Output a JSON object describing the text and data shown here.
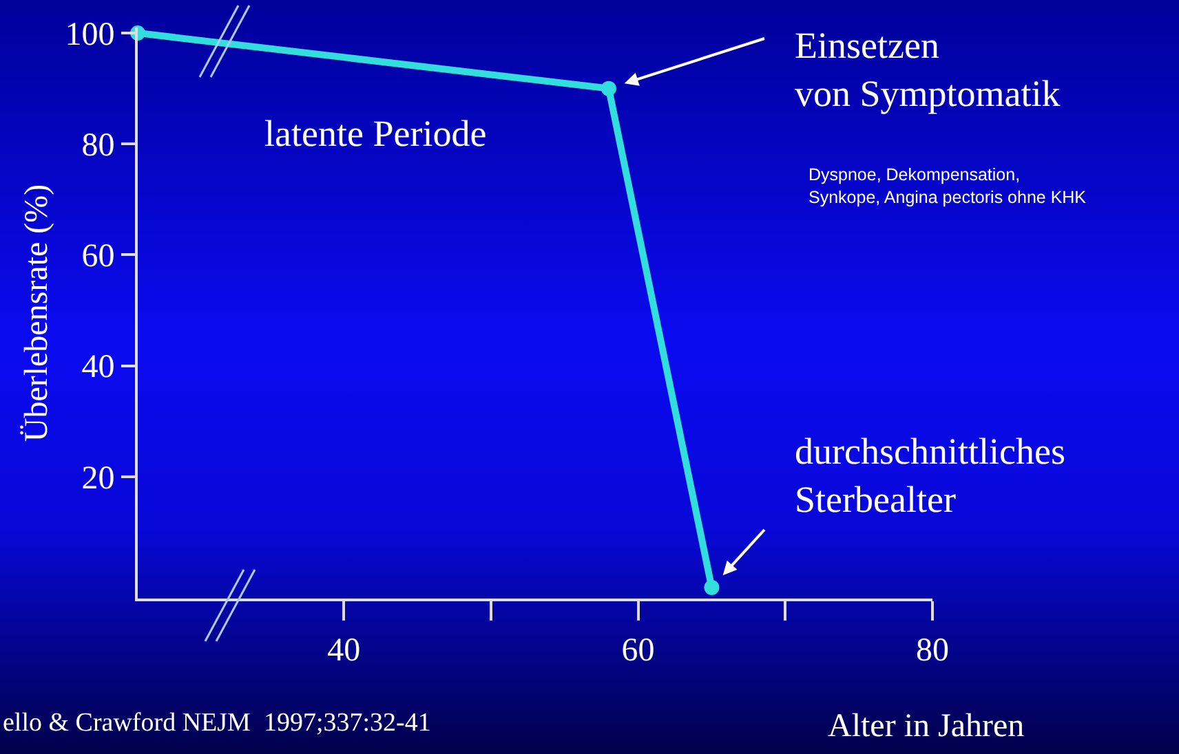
{
  "chart_data": {
    "type": "line",
    "xlabel": "Alter in Jahren",
    "ylabel": "Überlebensrate (%)",
    "x": [
      26,
      58,
      65
    ],
    "series": [
      {
        "color": "#33dddd",
        "values": [
          100,
          90,
          0
        ]
      }
    ],
    "xlim": [
      26,
      80
    ],
    "xticks": [
      40,
      {
        "value": 50,
        "label": null
      },
      60,
      {
        "value": 70,
        "label": null
      },
      80
    ],
    "ylim": [
      -2,
      101
    ],
    "yticks": [
      20,
      40,
      60,
      80,
      100
    ],
    "grid": false,
    "legend": false,
    "marker": "circle",
    "line_style": "solid",
    "annotations": [
      "Einsetzen\nvon Symptomatik",
      "Dyspnoe, Dekompensation,\nSynkope, Angina pectoris ohne KHK",
      "durchschnittliches\nSterbealter",
      "latente Periode",
      "ello & Crawford NEJM  1997;337:32-41"
    ]
  }
}
